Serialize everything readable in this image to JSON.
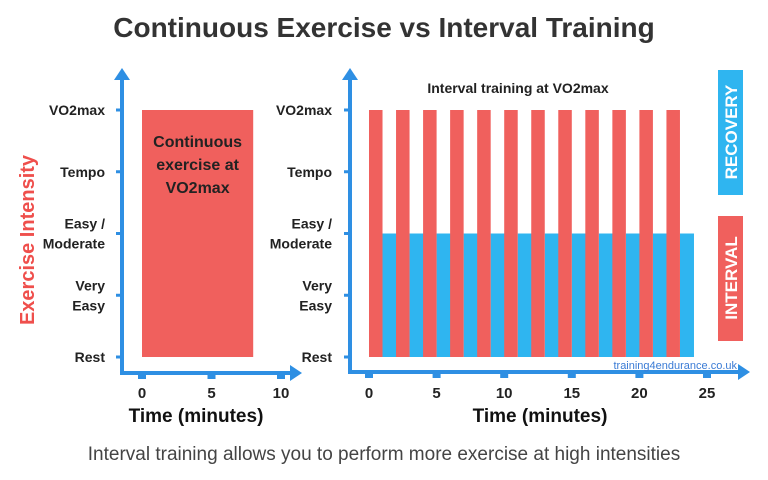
{
  "title": "Continuous Exercise vs Interval Training",
  "caption": "Interval training allows you to perform more exercise at high intensities",
  "colors": {
    "work": "#f0605d",
    "recovery": "#2fb5f0",
    "axis": "#2e8fe3",
    "ylabel": "#ef4f4c"
  },
  "chart_data": [
    {
      "type": "bar",
      "ylabel": "Exercise Intensity",
      "xlabel": "Time (minutes)",
      "y_categories": [
        "Rest",
        "Very Easy",
        "Easy / Moderate",
        "Tempo",
        "VO2max"
      ],
      "x_ticks": [
        0,
        5,
        10
      ],
      "xlim": [
        0,
        10
      ],
      "annotation": "Continuous exercise at VO2max",
      "segments": [
        {
          "kind": "work",
          "start": 0,
          "end": 8,
          "intensity": "VO2max"
        }
      ]
    },
    {
      "type": "bar",
      "title": "Interval training at VO2max",
      "xlabel": "Time (minutes)",
      "y_categories": [
        "Rest",
        "Very Easy",
        "Easy / Moderate",
        "Tempo",
        "VO2max"
      ],
      "x_ticks": [
        0,
        5,
        10,
        15,
        20,
        25
      ],
      "xlim": [
        0,
        25
      ],
      "work_intensity": "VO2max",
      "recovery_intensity": "Easy / Moderate",
      "work_minutes": 1,
      "recovery_minutes": 1,
      "repetitions": 12,
      "legend": [
        "RECOVERY",
        "INTERVAL"
      ],
      "legend_position": "right",
      "watermark": "training4endurance.co.uk"
    }
  ]
}
